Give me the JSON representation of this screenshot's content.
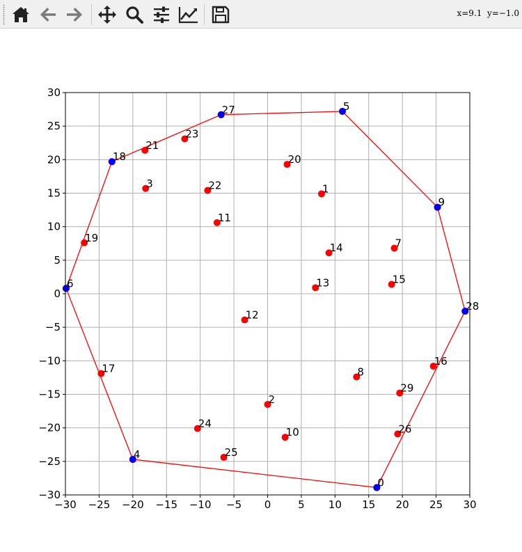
{
  "toolbar": {
    "buttons": [
      {
        "name": "home-icon"
      },
      {
        "name": "back-arrow-icon"
      },
      {
        "name": "forward-arrow-icon"
      },
      {
        "name": "pan-move-icon"
      },
      {
        "name": "zoom-magnifier-icon"
      },
      {
        "name": "configure-subplots-icon"
      },
      {
        "name": "edit-axis-curve-icon"
      },
      {
        "name": "save-floppy-icon"
      }
    ],
    "coords_readout": "x=9.1  y=−1.0"
  },
  "chart_data": {
    "type": "scatter",
    "title": "",
    "xlabel": "",
    "ylabel": "",
    "xlim": [
      -30,
      30
    ],
    "ylim": [
      -30,
      30
    ],
    "xticks": [
      -30,
      -25,
      -20,
      -15,
      -10,
      -5,
      0,
      5,
      10,
      15,
      20,
      25,
      30
    ],
    "yticks": [
      -30,
      -25,
      -20,
      -15,
      -10,
      -5,
      0,
      5,
      10,
      15,
      20,
      25,
      30
    ],
    "xtick_labels": [
      "−30",
      "−25",
      "−20",
      "−15",
      "−10",
      "−5",
      "0",
      "5",
      "10",
      "15",
      "20",
      "25",
      "30"
    ],
    "ytick_labels": [
      "−30",
      "−25",
      "−20",
      "−15",
      "−10",
      "−5",
      "0",
      "5",
      "10",
      "15",
      "20",
      "25",
      "30"
    ],
    "grid": true,
    "colors": {
      "point": "#ff0000",
      "hull_point": "#0000ff",
      "hull_line": "#ff0000",
      "grid": "#b0b0b0"
    },
    "points": [
      {
        "label": "0",
        "x": 16.2,
        "y": -28.9
      },
      {
        "label": "1",
        "x": 8.0,
        "y": 14.9
      },
      {
        "label": "2",
        "x": 0.0,
        "y": -16.5
      },
      {
        "label": "3",
        "x": -18.1,
        "y": 15.7
      },
      {
        "label": "4",
        "x": -20.0,
        "y": -24.7
      },
      {
        "label": "5",
        "x": 11.1,
        "y": 27.2
      },
      {
        "label": "6",
        "x": -29.9,
        "y": 0.8
      },
      {
        "label": "7",
        "x": 18.8,
        "y": 6.8
      },
      {
        "label": "8",
        "x": 13.2,
        "y": -12.4
      },
      {
        "label": "9",
        "x": 25.2,
        "y": 12.9
      },
      {
        "label": "10",
        "x": 2.6,
        "y": -21.4
      },
      {
        "label": "11",
        "x": -7.5,
        "y": 10.6
      },
      {
        "label": "12",
        "x": -3.4,
        "y": -3.9
      },
      {
        "label": "13",
        "x": 7.1,
        "y": 0.9
      },
      {
        "label": "14",
        "x": 9.1,
        "y": 6.1
      },
      {
        "label": "15",
        "x": 18.4,
        "y": 1.4
      },
      {
        "label": "16",
        "x": 24.6,
        "y": -10.8
      },
      {
        "label": "17",
        "x": -24.7,
        "y": -11.9
      },
      {
        "label": "18",
        "x": -23.1,
        "y": 19.7
      },
      {
        "label": "19",
        "x": -27.2,
        "y": 7.6
      },
      {
        "label": "20",
        "x": 2.9,
        "y": 19.3
      },
      {
        "label": "21",
        "x": -18.2,
        "y": 21.4
      },
      {
        "label": "22",
        "x": -8.9,
        "y": 15.4
      },
      {
        "label": "23",
        "x": -12.3,
        "y": 23.1
      },
      {
        "label": "24",
        "x": -10.4,
        "y": -20.1
      },
      {
        "label": "25",
        "x": -6.5,
        "y": -24.4
      },
      {
        "label": "26",
        "x": 19.3,
        "y": -20.9
      },
      {
        "label": "27",
        "x": -6.9,
        "y": 26.7
      },
      {
        "label": "28",
        "x": 29.3,
        "y": -2.6
      },
      {
        "label": "29",
        "x": 19.6,
        "y": -14.8
      }
    ],
    "hull_order": [
      "0",
      "28",
      "9",
      "5",
      "27",
      "18",
      "6",
      "4",
      "0"
    ]
  }
}
